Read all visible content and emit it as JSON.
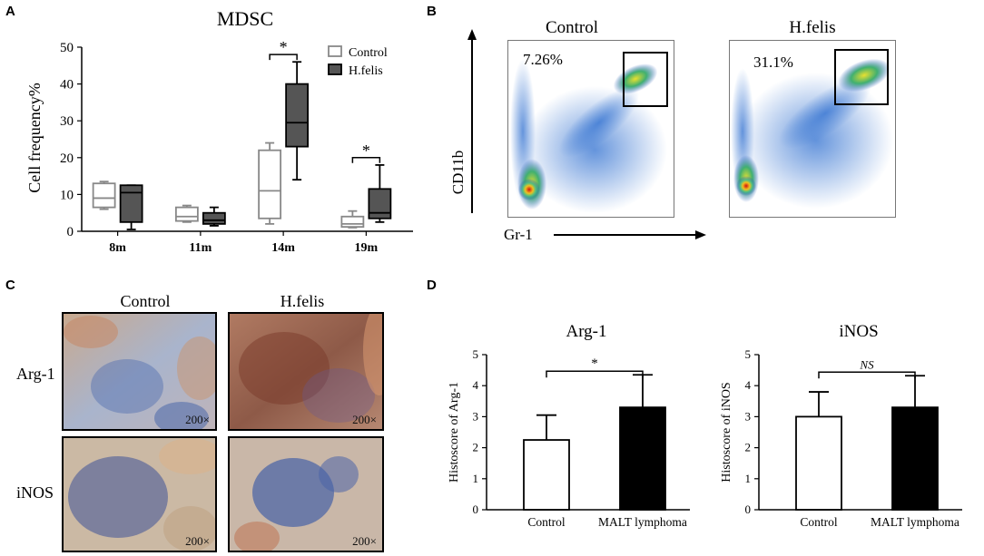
{
  "panels": {
    "a": "A",
    "b": "B",
    "c": "C",
    "d": "D"
  },
  "chart_data": [
    {
      "type": "box",
      "panel": "A",
      "title": "MDSC",
      "ylabel": "Cell frequency%",
      "ylim": [
        0,
        50
      ],
      "yticks": [
        0,
        10,
        20,
        30,
        40,
        50
      ],
      "categories": [
        "8m",
        "11m",
        "14m",
        "19m"
      ],
      "legend_position": "top-right",
      "series": [
        {
          "name": "Control",
          "color": "#ffffff",
          "stroke": "#888888",
          "boxes": [
            {
              "min": 6,
              "q1": 6.5,
              "median": 9,
              "q3": 13,
              "max": 13.5
            },
            {
              "min": 2.5,
              "q1": 2.8,
              "median": 4,
              "q3": 6.5,
              "max": 7
            },
            {
              "min": 2,
              "q1": 3.5,
              "median": 11,
              "q3": 22,
              "max": 24
            },
            {
              "min": 1,
              "q1": 1.2,
              "median": 2,
              "q3": 4,
              "max": 5.5
            }
          ]
        },
        {
          "name": "H.felis",
          "color": "#555555",
          "stroke": "#000000",
          "boxes": [
            {
              "min": 0.5,
              "q1": 2.5,
              "median": 10.5,
              "q3": 12.5,
              "max": 12.5
            },
            {
              "min": 1.5,
              "q1": 2,
              "median": 3,
              "q3": 5,
              "max": 6.5
            },
            {
              "min": 14,
              "q1": 23,
              "median": 29.5,
              "q3": 40,
              "max": 46
            },
            {
              "min": 2.5,
              "q1": 3.5,
              "median": 5,
              "q3": 11.5,
              "max": 18
            }
          ]
        }
      ],
      "significance": [
        {
          "category": "14m",
          "label": "*",
          "y": 48
        },
        {
          "category": "19m",
          "label": "*",
          "y": 20
        }
      ]
    },
    {
      "type": "bar",
      "panel": "D",
      "title": "Arg-1",
      "ylabel": "Histoscore of Arg-1",
      "ylim": [
        0,
        5
      ],
      "yticks": [
        0,
        1,
        2,
        3,
        4,
        5
      ],
      "categories": [
        "Control",
        "MALT lymphoma"
      ],
      "values": [
        2.25,
        3.3
      ],
      "errors": [
        0.8,
        1.05
      ],
      "colors": [
        "#ffffff",
        "#000000"
      ],
      "significance": {
        "label": "*",
        "italic": false
      }
    },
    {
      "type": "bar",
      "panel": "D",
      "title": "iNOS",
      "ylabel": "Histoscore of iNOS",
      "ylim": [
        0,
        5
      ],
      "yticks": [
        0,
        1,
        2,
        3,
        4,
        5
      ],
      "categories": [
        "Control",
        "MALT lymphoma"
      ],
      "values": [
        3.0,
        3.3
      ],
      "errors": [
        0.8,
        1.02
      ],
      "colors": [
        "#ffffff",
        "#000000"
      ],
      "significance": {
        "label": "NS",
        "italic": true
      }
    }
  ],
  "flow": {
    "x_label": "Gr-1",
    "y_label": "CD11b",
    "plots": [
      {
        "title": "Control",
        "percent": "7.26%"
      },
      {
        "title": "H.felis",
        "percent": "31.1%"
      }
    ]
  },
  "histology": {
    "columns": [
      "Control",
      "H.felis"
    ],
    "rows": [
      "Arg-1",
      "iNOS"
    ],
    "magnification": "200×"
  }
}
